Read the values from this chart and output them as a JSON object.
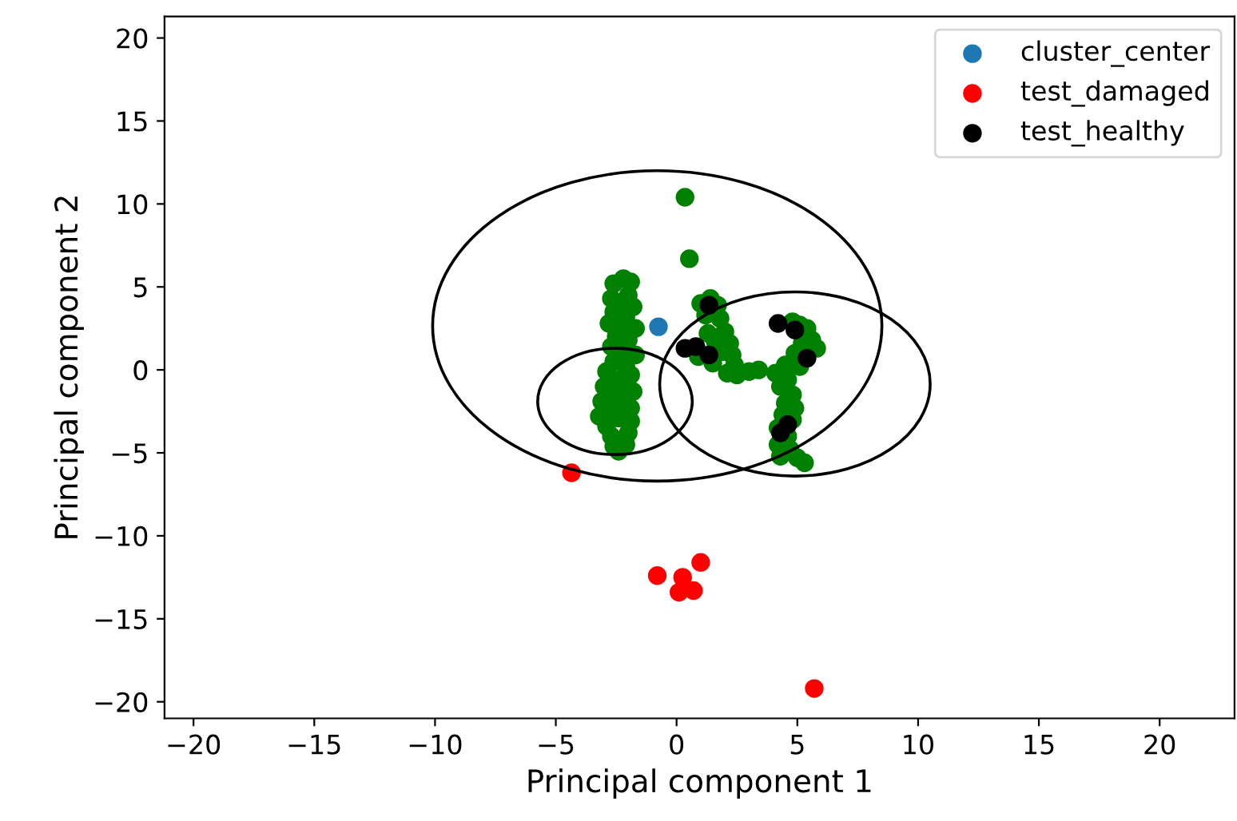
{
  "chart_data": {
    "type": "scatter",
    "xlabel": "Principal component 1",
    "ylabel": "Principal component 2",
    "xlim": [
      -21.2,
      23.1
    ],
    "ylim": [
      -21,
      21.3
    ],
    "xticks": [
      {
        "value": -20,
        "label": "−20"
      },
      {
        "value": -15,
        "label": "−15"
      },
      {
        "value": -10,
        "label": "−10"
      },
      {
        "value": -5,
        "label": "−5"
      },
      0,
      5,
      10,
      15,
      20
    ],
    "yticks": [
      {
        "value": -20,
        "label": "−20"
      },
      {
        "value": -15,
        "label": "−15"
      },
      {
        "value": -10,
        "label": "−10"
      },
      {
        "value": -5,
        "label": "−5"
      },
      0,
      5,
      10,
      15,
      20
    ],
    "grid": false,
    "legend": "top right",
    "marker": "circle",
    "series": [
      {
        "color": "#008000",
        "x": [
          -2.2,
          -2.6,
          -1.9,
          -2.0,
          -2.7,
          -2.3,
          -1.8,
          -2.6,
          -2.1,
          -2.8,
          -2.3,
          -1.7,
          -2.5,
          -2.0,
          -2.7,
          -2.2,
          -1.7,
          -2.6,
          -2.1,
          -2.9,
          -1.9,
          -2.5,
          -3.0,
          -2.2,
          -1.8,
          -2.7,
          -3.1,
          -2.3,
          -1.9,
          -2.8,
          -3.2,
          -2.4,
          -1.9,
          -2.9,
          -2.0,
          -2.7,
          -2.6,
          -2.1,
          -2.4,
          0.35,
          0.53,
          1.4,
          1.0,
          1.7,
          1.2,
          1.8,
          2.0,
          1.3,
          2.2,
          1.6,
          1.9,
          2.3,
          0.9,
          1.5,
          2.4,
          2.1,
          2.5,
          3.0,
          3.4,
          4.1,
          4.5,
          4.8,
          5.1,
          5.4,
          5.6,
          5.8,
          5.2,
          4.9,
          5.1,
          4.6,
          4.3,
          4.8,
          4.5,
          4.9,
          4.4,
          4.8,
          4.2,
          4.6,
          4.2,
          4.7,
          4.3,
          5.0,
          5.3
        ],
        "values": [
          5.5,
          5.2,
          5.3,
          4.5,
          4.3,
          4.0,
          3.8,
          3.5,
          3.2,
          2.8,
          2.6,
          2.5,
          2.0,
          1.8,
          1.4,
          1.1,
          0.9,
          0.5,
          0.2,
          -0.1,
          -0.3,
          -0.6,
          -1.0,
          -1.0,
          -1.3,
          -1.5,
          -1.9,
          -2.0,
          -2.3,
          -2.5,
          -2.8,
          -2.9,
          -3.1,
          -3.4,
          -3.8,
          -4.0,
          -4.6,
          -4.5,
          -4.9,
          10.4,
          6.7,
          4.3,
          4.0,
          3.9,
          3.3,
          3.1,
          2.3,
          2.2,
          1.6,
          1.7,
          1.1,
          0.9,
          0.8,
          0.4,
          0.3,
          -0.2,
          -0.3,
          -0.1,
          0.0,
          -0.2,
          0.3,
          2.9,
          2.7,
          2.5,
          1.8,
          1.3,
          1.6,
          1.0,
          0.2,
          -0.6,
          -1.0,
          -1.5,
          -2.0,
          -2.3,
          -2.7,
          -3.0,
          -3.5,
          -4.0,
          -4.5,
          -4.8,
          -5.2,
          -5.3,
          -5.6
        ]
      },
      {
        "name": "cluster_center",
        "color": "#1f77b4",
        "x": [
          -0.75
        ],
        "values": [
          2.6
        ]
      },
      {
        "name": "test_damaged",
        "color": "#ff0000",
        "x": [
          -4.35,
          -0.8,
          1.0,
          0.1,
          0.7,
          0.25,
          5.7
        ],
        "values": [
          -6.2,
          -12.4,
          -11.6,
          -13.4,
          -13.3,
          -12.5,
          -19.2
        ]
      },
      {
        "name": "test_healthy",
        "color": "#000000",
        "x": [
          1.34,
          0.35,
          0.8,
          1.34,
          4.2,
          4.9,
          5.4,
          4.3,
          4.6
        ],
        "values": [
          3.9,
          1.3,
          1.4,
          0.9,
          2.8,
          2.4,
          0.7,
          -3.8,
          -3.3
        ]
      }
    ]
  }
}
